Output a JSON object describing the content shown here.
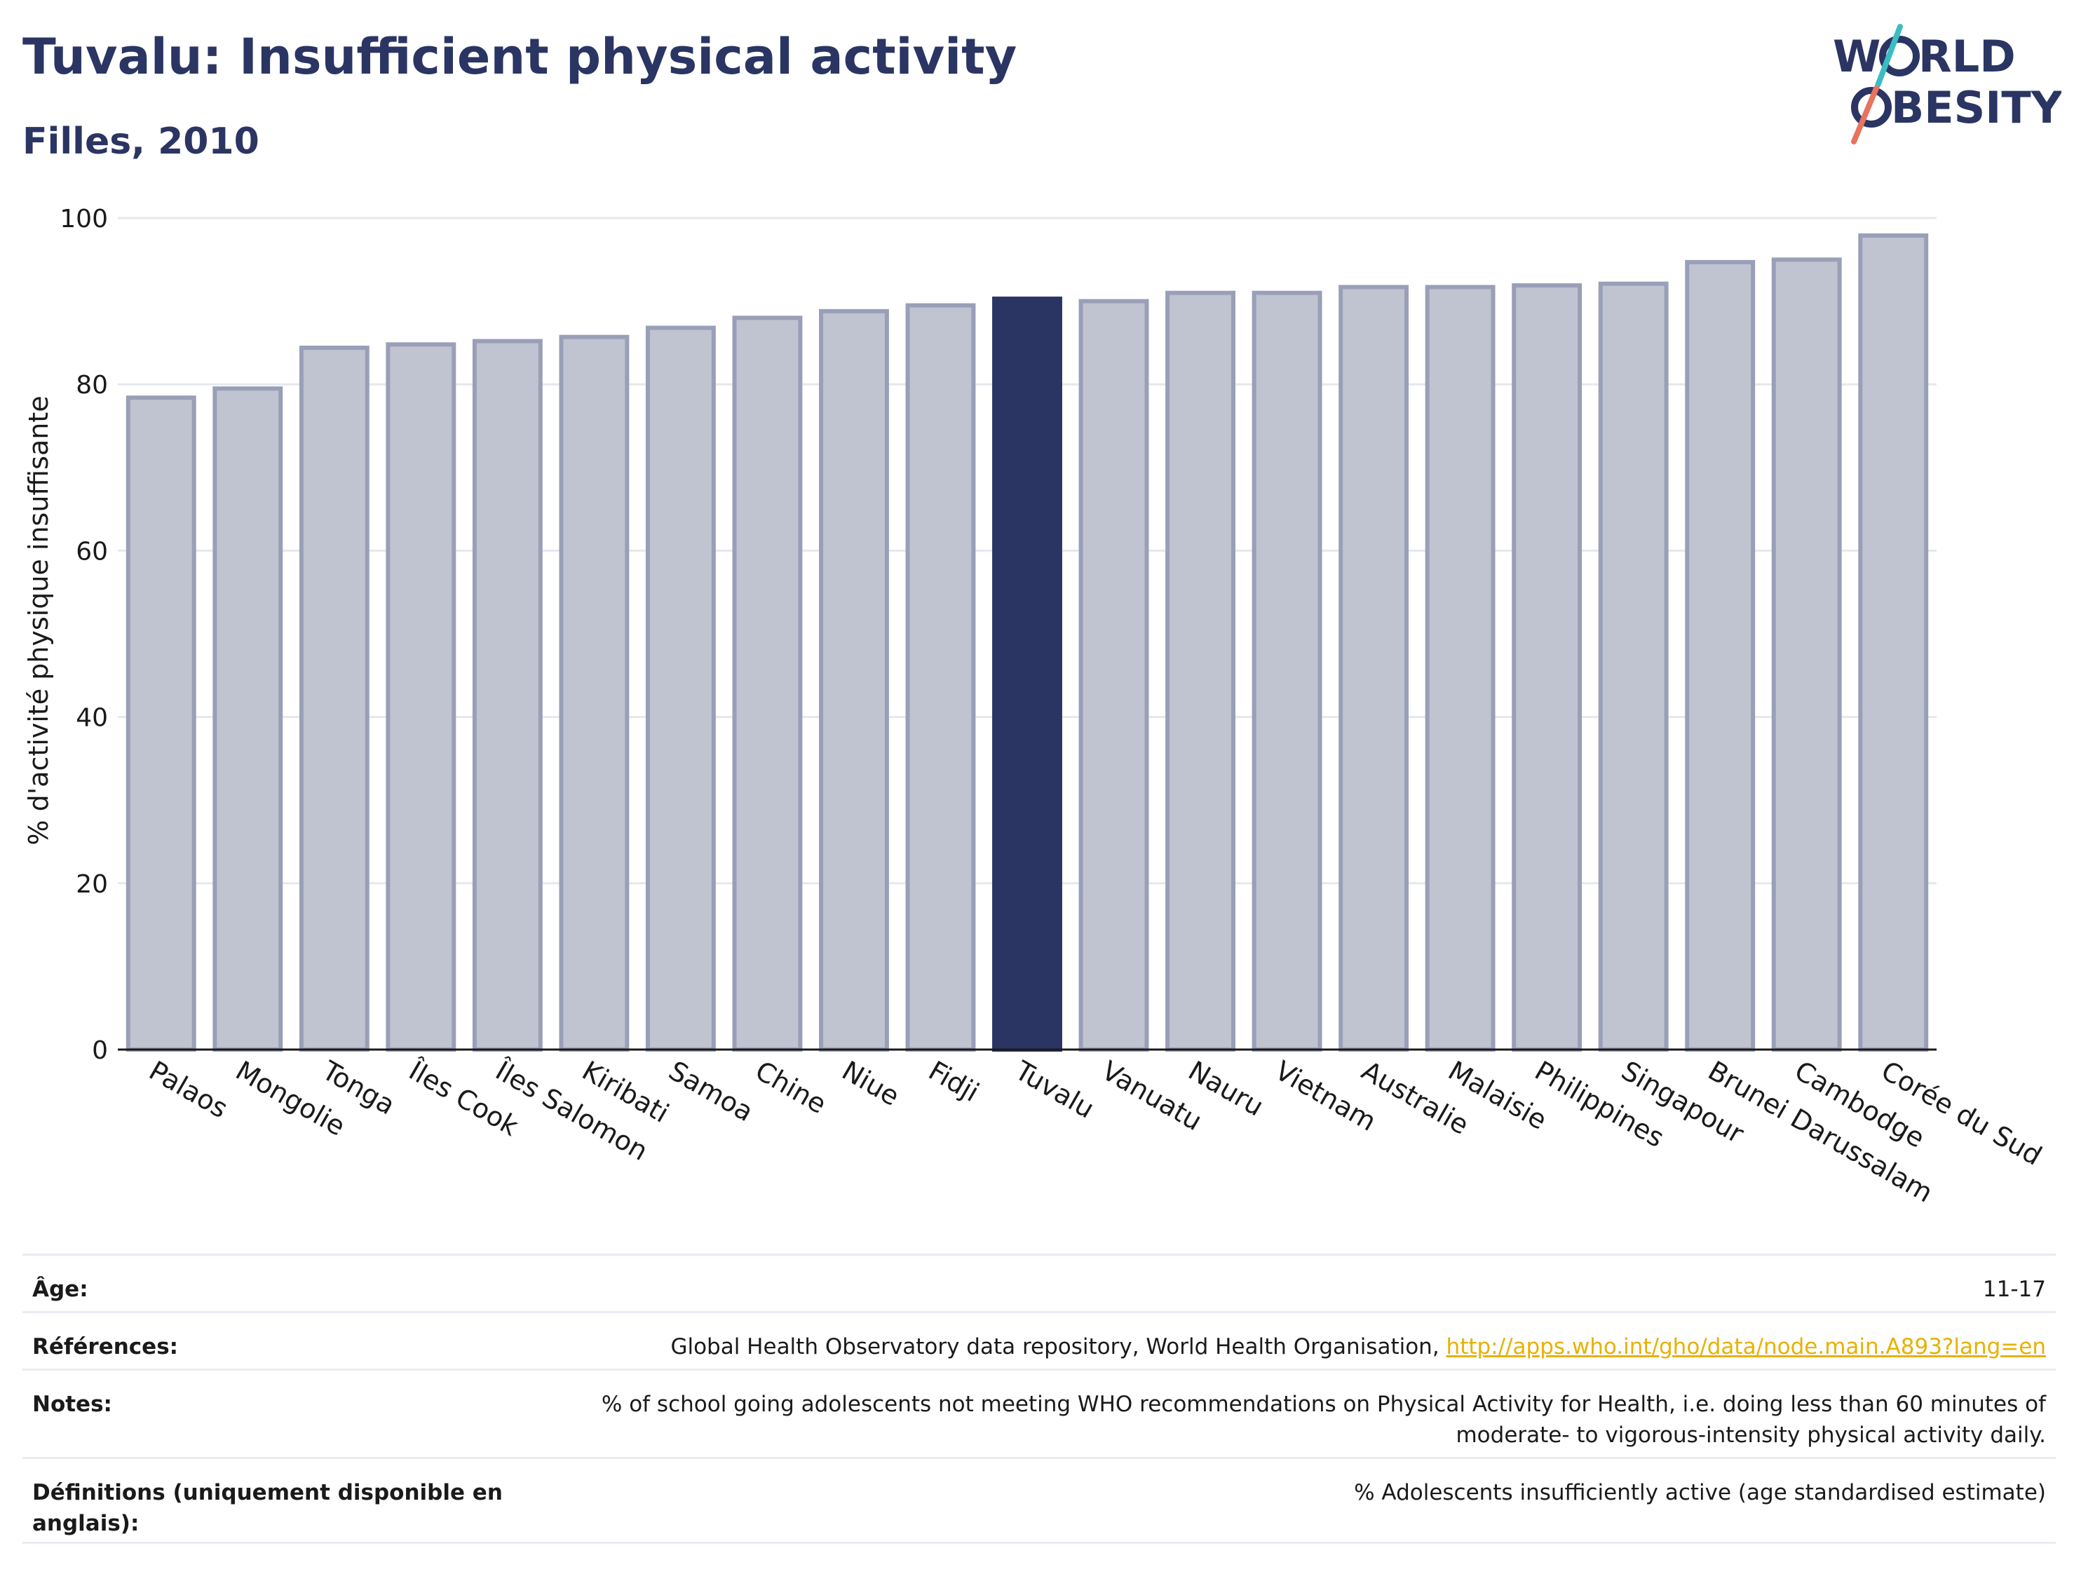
{
  "header": {
    "title": "Tuvalu: Insufficient physical activity",
    "subtitle": "Filles, 2010"
  },
  "logo": {
    "line1": "WORLD",
    "line2": "OBESITY"
  },
  "colors": {
    "bar": "#c0c3d0",
    "bar_border": "#9a9fb8",
    "highlight": "#2b3563",
    "grid": "#e6e8ee"
  },
  "chart_data": {
    "type": "bar",
    "categories": [
      "Palaos",
      "Mongolie",
      "Tonga",
      "Îles Cook",
      "Îles Salomon",
      "Kiribati",
      "Samoa",
      "Chine",
      "Niue",
      "Fidji",
      "Tuvalu",
      "Vanuatu",
      "Nauru",
      "Vietnam",
      "Australie",
      "Malaisie",
      "Philippines",
      "Singapour",
      "Brunei Darussalam",
      "Cambodge",
      "Corée du Sud"
    ],
    "values": [
      78.4,
      79.5,
      84.4,
      84.8,
      85.2,
      85.7,
      86.8,
      88.0,
      88.8,
      89.5,
      90.3,
      90.0,
      91.0,
      91.0,
      91.7,
      91.7,
      91.9,
      92.1,
      94.7,
      95.0,
      97.9
    ],
    "highlight": "Tuvalu",
    "ylabel": "% d'activité physique insuffisante",
    "xlabel": "",
    "ylim": [
      0,
      100
    ],
    "yticks": [
      0,
      20,
      40,
      60,
      80,
      100
    ],
    "grid": true
  },
  "meta": {
    "age": {
      "label": "Âge:",
      "value": "11-17"
    },
    "references": {
      "label": "Références:",
      "text": "Global Health Observatory data repository, World Health Organisation, ",
      "link": "http://apps.who.int/gho/data/node.main.A893?lang=en"
    },
    "notes": {
      "label": "Notes:",
      "line1": "% of school going adolescents not meeting WHO recommendations on Physical Activity for Health, i.e. doing less than 60 minutes of",
      "line2": "moderate- to vigorous-intensity physical activity daily."
    },
    "definitions": {
      "label1": "Définitions (uniquement disponible en",
      "label2": "anglais):",
      "value": "% Adolescents insufficiently active (age standardised estimate)"
    }
  }
}
